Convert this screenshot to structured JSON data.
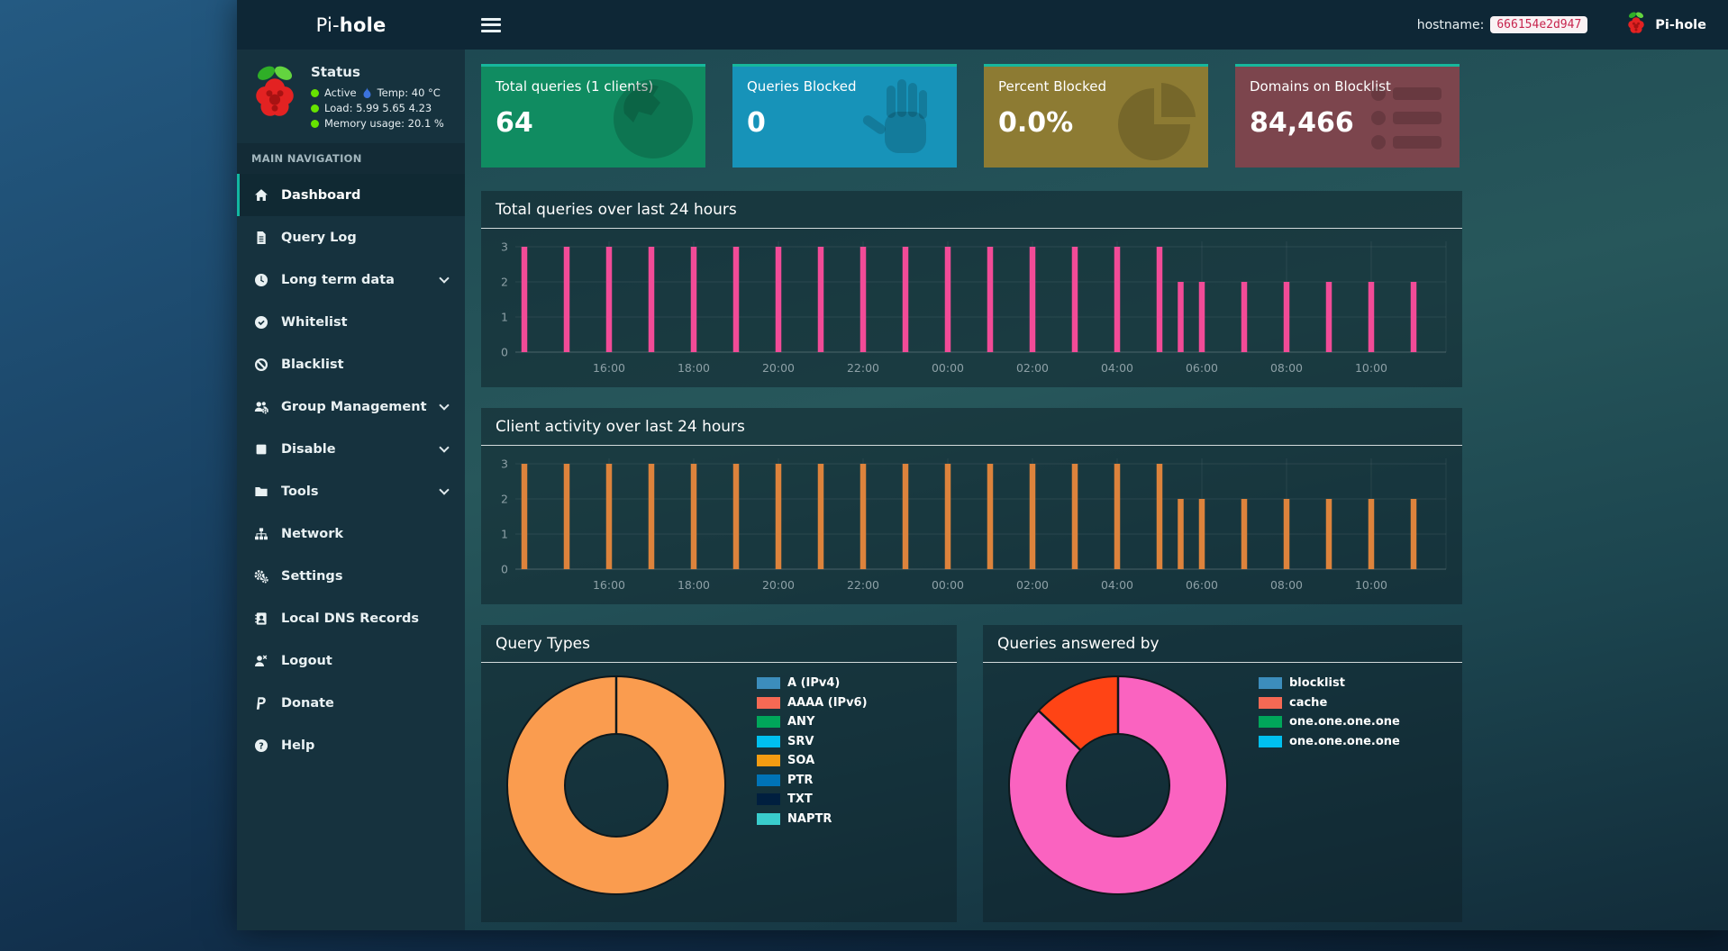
{
  "colors": {
    "accent_teal": "#17b79c",
    "status_green": "#67e300",
    "temp_blue": "#3c73dd",
    "axis_text": "#8da0a6"
  },
  "navbar": {
    "brand_prefix": "Pi-",
    "brand_bold": "hole",
    "hostname_label": "hostname:",
    "hostname_value": "666154e2d947",
    "brand_right": "Pi-hole"
  },
  "sidebar": {
    "status": {
      "title": "Status",
      "active": "Active",
      "temp": "Temp: 40 °C",
      "load": "Load:  5.99  5.65  4.23",
      "memory": "Memory usage:  20.1 %"
    },
    "section_label": "MAIN NAVIGATION",
    "items": [
      {
        "label": "Dashboard",
        "icon": "home-icon",
        "active": true,
        "chevron": false
      },
      {
        "label": "Query Log",
        "icon": "file-icon",
        "active": false,
        "chevron": false
      },
      {
        "label": "Long term data",
        "icon": "clock-icon",
        "active": false,
        "chevron": true
      },
      {
        "label": "Whitelist",
        "icon": "check-circle-icon",
        "active": false,
        "chevron": false
      },
      {
        "label": "Blacklist",
        "icon": "ban-icon",
        "active": false,
        "chevron": false
      },
      {
        "label": "Group Management",
        "icon": "users-gear-icon",
        "active": false,
        "chevron": true
      },
      {
        "label": "Disable",
        "icon": "stop-icon",
        "active": false,
        "chevron": true
      },
      {
        "label": "Tools",
        "icon": "folder-icon",
        "active": false,
        "chevron": true
      },
      {
        "label": "Network",
        "icon": "sitemap-icon",
        "active": false,
        "chevron": false
      },
      {
        "label": "Settings",
        "icon": "gears-icon",
        "active": false,
        "chevron": false
      },
      {
        "label": "Local DNS Records",
        "icon": "address-book-icon",
        "active": false,
        "chevron": false
      },
      {
        "label": "Logout",
        "icon": "user-x-icon",
        "active": false,
        "chevron": false
      },
      {
        "label": "Donate",
        "icon": "paypal-icon",
        "active": false,
        "chevron": false
      },
      {
        "label": "Help",
        "icon": "question-icon",
        "active": false,
        "chevron": false
      }
    ]
  },
  "cards": [
    {
      "title": "Total queries (1 clients)",
      "value": "64",
      "color": "#108c61",
      "icon": "globe-icon"
    },
    {
      "title": "Queries Blocked",
      "value": "0",
      "color": "#1793b9",
      "icon": "hand-icon"
    },
    {
      "title": "Percent Blocked",
      "value": "0.0%",
      "color": "#8d7b33",
      "icon": "pie-icon"
    },
    {
      "title": "Domains on Blocklist",
      "value": "84,466",
      "color": "#7c454d",
      "icon": "list-icon"
    }
  ],
  "chart_data": [
    {
      "type": "bar",
      "title": "Total queries over last 24 hours",
      "color": "#f24b97",
      "x": [
        "14:00",
        "15:00",
        "16:00",
        "17:00",
        "18:00",
        "19:00",
        "20:00",
        "21:00",
        "22:00",
        "23:00",
        "00:00",
        "01:00",
        "02:00",
        "03:00",
        "04:00",
        "05:00",
        "05:30",
        "06:00",
        "07:00",
        "08:00",
        "09:00",
        "10:00",
        "11:00"
      ],
      "values": [
        3,
        3,
        3,
        3,
        3,
        3,
        3,
        3,
        3,
        3,
        3,
        3,
        3,
        3,
        3,
        3,
        2,
        2,
        2,
        2,
        2,
        2,
        2
      ],
      "x_ticks": [
        "16:00",
        "18:00",
        "20:00",
        "22:00",
        "00:00",
        "02:00",
        "04:00",
        "06:00",
        "08:00",
        "10:00"
      ],
      "y_ticks": [
        0,
        1,
        2,
        3
      ],
      "ylim": [
        0,
        3
      ],
      "grid": true,
      "legend_position": "none"
    },
    {
      "type": "bar",
      "title": "Client activity over last 24 hours",
      "color": "#dd833c",
      "x": [
        "14:00",
        "15:00",
        "16:00",
        "17:00",
        "18:00",
        "19:00",
        "20:00",
        "21:00",
        "22:00",
        "23:00",
        "00:00",
        "01:00",
        "02:00",
        "03:00",
        "04:00",
        "05:00",
        "05:30",
        "06:00",
        "07:00",
        "08:00",
        "09:00",
        "10:00",
        "11:00"
      ],
      "values": [
        3,
        3,
        3,
        3,
        3,
        3,
        3,
        3,
        3,
        3,
        3,
        3,
        3,
        3,
        3,
        3,
        2,
        2,
        2,
        2,
        2,
        2,
        2
      ],
      "x_ticks": [
        "16:00",
        "18:00",
        "20:00",
        "22:00",
        "00:00",
        "02:00",
        "04:00",
        "06:00",
        "08:00",
        "10:00"
      ],
      "y_ticks": [
        0,
        1,
        2,
        3
      ],
      "ylim": [
        0,
        3
      ],
      "grid": true,
      "legend_position": "none"
    },
    {
      "type": "doughnut",
      "title": "Query Types",
      "slices": [
        {
          "label": "SOA",
          "value": 100,
          "color": "#fa9c4f"
        }
      ],
      "legend_position": "right",
      "legend": [
        {
          "label": "A (IPv4)",
          "color": "#3c8dbc"
        },
        {
          "label": "AAAA (IPv6)",
          "color": "#f56954"
        },
        {
          "label": "ANY",
          "color": "#00a65a"
        },
        {
          "label": "SRV",
          "color": "#00c0ef"
        },
        {
          "label": "SOA",
          "color": "#f39c12"
        },
        {
          "label": "PTR",
          "color": "#0073b7"
        },
        {
          "label": "TXT",
          "color": "#001f3f"
        },
        {
          "label": "NAPTR",
          "color": "#39cccc"
        }
      ]
    },
    {
      "type": "doughnut",
      "title": "Queries answered by",
      "slices": [
        {
          "label": "one.one.one.one",
          "value": 87,
          "color": "#fa63c0"
        },
        {
          "label": "cache",
          "value": 13,
          "color": "#ff4415"
        }
      ],
      "legend_position": "right",
      "legend": [
        {
          "label": "blocklist",
          "color": "#3c8dbc"
        },
        {
          "label": "cache",
          "color": "#f56954"
        },
        {
          "label": "one.one.one.one",
          "color": "#00a65a"
        },
        {
          "label": "one.one.one.one",
          "color": "#00c0ef"
        }
      ]
    }
  ]
}
